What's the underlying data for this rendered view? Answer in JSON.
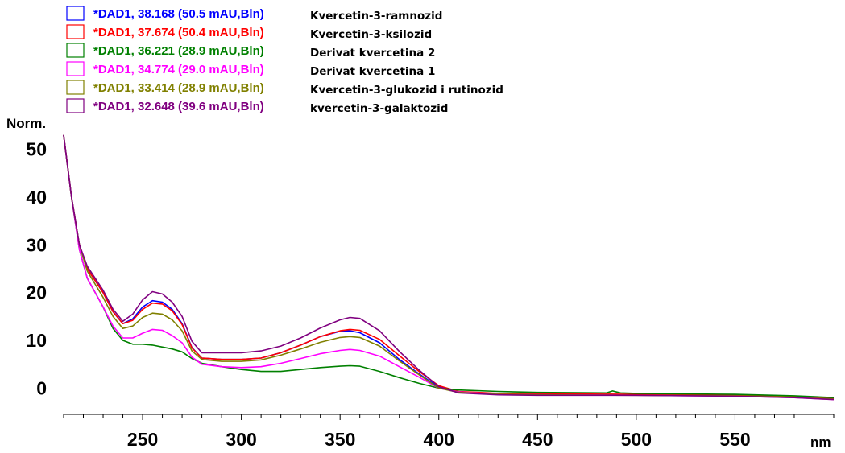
{
  "chart_data": {
    "type": "line",
    "ylabel": "Norm.",
    "xlabel": "nm",
    "xlim": [
      210,
      600
    ],
    "ylim": [
      -5.5,
      56
    ],
    "x_ticks": [
      250,
      300,
      350,
      400,
      450,
      500,
      550
    ],
    "y_ticks": [
      0,
      10,
      20,
      30,
      40,
      50
    ],
    "grid": false,
    "legend_position": "top-left",
    "series": [
      {
        "name": "*DAD1, 38.168 (50.5 mAU,Bln)",
        "compound": "Kvercetin-3-ramnozid",
        "color": "#0000ff",
        "points": [
          [
            210,
            53
          ],
          [
            214,
            40
          ],
          [
            218,
            30
          ],
          [
            222,
            25
          ],
          [
            230,
            20
          ],
          [
            235,
            16
          ],
          [
            240,
            13.5
          ],
          [
            245,
            14.5
          ],
          [
            250,
            17
          ],
          [
            255,
            18.3
          ],
          [
            260,
            18
          ],
          [
            265,
            16.5
          ],
          [
            270,
            13.5
          ],
          [
            275,
            8.5
          ],
          [
            280,
            6.3
          ],
          [
            290,
            6
          ],
          [
            300,
            6
          ],
          [
            310,
            6.3
          ],
          [
            320,
            7.4
          ],
          [
            330,
            9
          ],
          [
            340,
            10.8
          ],
          [
            350,
            11.9
          ],
          [
            355,
            12
          ],
          [
            360,
            11.6
          ],
          [
            370,
            9.5
          ],
          [
            380,
            6
          ],
          [
            390,
            3
          ],
          [
            400,
            0.2
          ],
          [
            410,
            -0.8
          ],
          [
            430,
            -1.2
          ],
          [
            450,
            -1.3
          ],
          [
            500,
            -1.4
          ],
          [
            550,
            -1.5
          ],
          [
            580,
            -1.8
          ],
          [
            600,
            -2.2
          ]
        ]
      },
      {
        "name": "*DAD1, 37.674 (50.4 mAU,Bln)",
        "compound": "Kvercetin-3-ksilozid",
        "color": "#ff0000",
        "points": [
          [
            210,
            53
          ],
          [
            214,
            40
          ],
          [
            218,
            30
          ],
          [
            222,
            25
          ],
          [
            230,
            20
          ],
          [
            235,
            16
          ],
          [
            240,
            13.5
          ],
          [
            245,
            14.2
          ],
          [
            250,
            16.5
          ],
          [
            255,
            17.8
          ],
          [
            260,
            17.6
          ],
          [
            265,
            16.2
          ],
          [
            270,
            13.3
          ],
          [
            275,
            8.4
          ],
          [
            280,
            6.3
          ],
          [
            290,
            6
          ],
          [
            300,
            6
          ],
          [
            310,
            6.3
          ],
          [
            320,
            7.4
          ],
          [
            330,
            9
          ],
          [
            340,
            10.8
          ],
          [
            350,
            12
          ],
          [
            355,
            12.3
          ],
          [
            360,
            12.1
          ],
          [
            370,
            10.2
          ],
          [
            380,
            6.8
          ],
          [
            390,
            3.5
          ],
          [
            400,
            0.5
          ],
          [
            410,
            -0.7
          ],
          [
            430,
            -1.1
          ],
          [
            450,
            -1.2
          ],
          [
            500,
            -1.3
          ],
          [
            550,
            -1.5
          ],
          [
            580,
            -1.8
          ],
          [
            600,
            -2.2
          ]
        ]
      },
      {
        "name": "*DAD1, 36.221 (28.9 mAU,Bln)",
        "compound": "Derivat kvercetina 2",
        "color": "#008000",
        "points": [
          [
            210,
            53
          ],
          [
            214,
            40
          ],
          [
            218,
            29
          ],
          [
            222,
            23
          ],
          [
            230,
            17
          ],
          [
            235,
            12.5
          ],
          [
            240,
            10
          ],
          [
            245,
            9.2
          ],
          [
            250,
            9.2
          ],
          [
            255,
            9
          ],
          [
            260,
            8.6
          ],
          [
            265,
            8.2
          ],
          [
            270,
            7.6
          ],
          [
            275,
            6.2
          ],
          [
            280,
            5.2
          ],
          [
            290,
            4.5
          ],
          [
            300,
            3.9
          ],
          [
            310,
            3.5
          ],
          [
            320,
            3.5
          ],
          [
            330,
            3.9
          ],
          [
            340,
            4.3
          ],
          [
            350,
            4.6
          ],
          [
            355,
            4.7
          ],
          [
            360,
            4.6
          ],
          [
            370,
            3.5
          ],
          [
            380,
            2.2
          ],
          [
            390,
            1
          ],
          [
            400,
            0
          ],
          [
            410,
            -0.4
          ],
          [
            430,
            -0.7
          ],
          [
            450,
            -0.9
          ],
          [
            485,
            -1
          ],
          [
            488,
            -0.6
          ],
          [
            492,
            -1
          ],
          [
            500,
            -1.1
          ],
          [
            550,
            -1.3
          ],
          [
            580,
            -1.6
          ],
          [
            600,
            -2
          ]
        ]
      },
      {
        "name": "*DAD1, 34.774 (29.0 mAU,Bln)",
        "compound": "Derivat kvercetina 1",
        "color": "#ff00ff",
        "points": [
          [
            210,
            53
          ],
          [
            214,
            40
          ],
          [
            218,
            29
          ],
          [
            222,
            23
          ],
          [
            230,
            17
          ],
          [
            235,
            13
          ],
          [
            240,
            10.5
          ],
          [
            245,
            10.5
          ],
          [
            250,
            11.5
          ],
          [
            255,
            12.3
          ],
          [
            260,
            12.1
          ],
          [
            265,
            11
          ],
          [
            270,
            9.5
          ],
          [
            275,
            6.5
          ],
          [
            280,
            5
          ],
          [
            290,
            4.5
          ],
          [
            300,
            4.3
          ],
          [
            310,
            4.5
          ],
          [
            320,
            5.2
          ],
          [
            330,
            6.2
          ],
          [
            340,
            7.2
          ],
          [
            350,
            7.9
          ],
          [
            355,
            8.1
          ],
          [
            360,
            7.9
          ],
          [
            370,
            6.7
          ],
          [
            380,
            4.5
          ],
          [
            390,
            2.3
          ],
          [
            400,
            0
          ],
          [
            410,
            -0.8
          ],
          [
            430,
            -1.3
          ],
          [
            450,
            -1.4
          ],
          [
            500,
            -1.5
          ],
          [
            550,
            -1.7
          ],
          [
            580,
            -2
          ],
          [
            600,
            -2.4
          ]
        ]
      },
      {
        "name": "*DAD1, 33.414 (28.9 mAU,Bln)",
        "compound": "Kvercetin-3-glukozid i rutinozid",
        "color": "#808000",
        "points": [
          [
            210,
            53
          ],
          [
            214,
            40
          ],
          [
            218,
            30
          ],
          [
            222,
            24.5
          ],
          [
            230,
            19
          ],
          [
            235,
            15
          ],
          [
            240,
            12.5
          ],
          [
            245,
            13
          ],
          [
            250,
            14.8
          ],
          [
            255,
            15.7
          ],
          [
            260,
            15.5
          ],
          [
            265,
            14.3
          ],
          [
            270,
            12
          ],
          [
            275,
            7.8
          ],
          [
            280,
            6
          ],
          [
            290,
            5.6
          ],
          [
            300,
            5.6
          ],
          [
            310,
            5.9
          ],
          [
            320,
            6.9
          ],
          [
            330,
            8.2
          ],
          [
            340,
            9.6
          ],
          [
            350,
            10.6
          ],
          [
            355,
            10.8
          ],
          [
            360,
            10.6
          ],
          [
            370,
            8.8
          ],
          [
            380,
            5.7
          ],
          [
            390,
            2.8
          ],
          [
            400,
            0
          ],
          [
            410,
            -0.9
          ],
          [
            430,
            -1.3
          ],
          [
            450,
            -1.4
          ],
          [
            500,
            -1.5
          ],
          [
            550,
            -1.6
          ],
          [
            580,
            -1.9
          ],
          [
            600,
            -2.3
          ]
        ]
      },
      {
        "name": "*DAD1, 32.648 (39.6 mAU,Bln)",
        "compound": "kvercetin-3-galaktozid",
        "color": "#800080",
        "points": [
          [
            210,
            53
          ],
          [
            214,
            40
          ],
          [
            218,
            30
          ],
          [
            222,
            25.5
          ],
          [
            230,
            20.5
          ],
          [
            235,
            16.5
          ],
          [
            240,
            14
          ],
          [
            245,
            15.5
          ],
          [
            250,
            18.5
          ],
          [
            255,
            20.2
          ],
          [
            260,
            19.7
          ],
          [
            265,
            18
          ],
          [
            270,
            15
          ],
          [
            275,
            9.8
          ],
          [
            280,
            7.4
          ],
          [
            290,
            7.4
          ],
          [
            300,
            7.4
          ],
          [
            310,
            7.8
          ],
          [
            320,
            8.8
          ],
          [
            330,
            10.5
          ],
          [
            340,
            12.6
          ],
          [
            350,
            14.3
          ],
          [
            355,
            14.8
          ],
          [
            360,
            14.6
          ],
          [
            370,
            12
          ],
          [
            380,
            7.7
          ],
          [
            390,
            3.8
          ],
          [
            400,
            0.3
          ],
          [
            410,
            -1
          ],
          [
            430,
            -1.4
          ],
          [
            450,
            -1.5
          ],
          [
            500,
            -1.5
          ],
          [
            550,
            -1.7
          ],
          [
            580,
            -2
          ],
          [
            600,
            -2.4
          ]
        ]
      }
    ]
  }
}
